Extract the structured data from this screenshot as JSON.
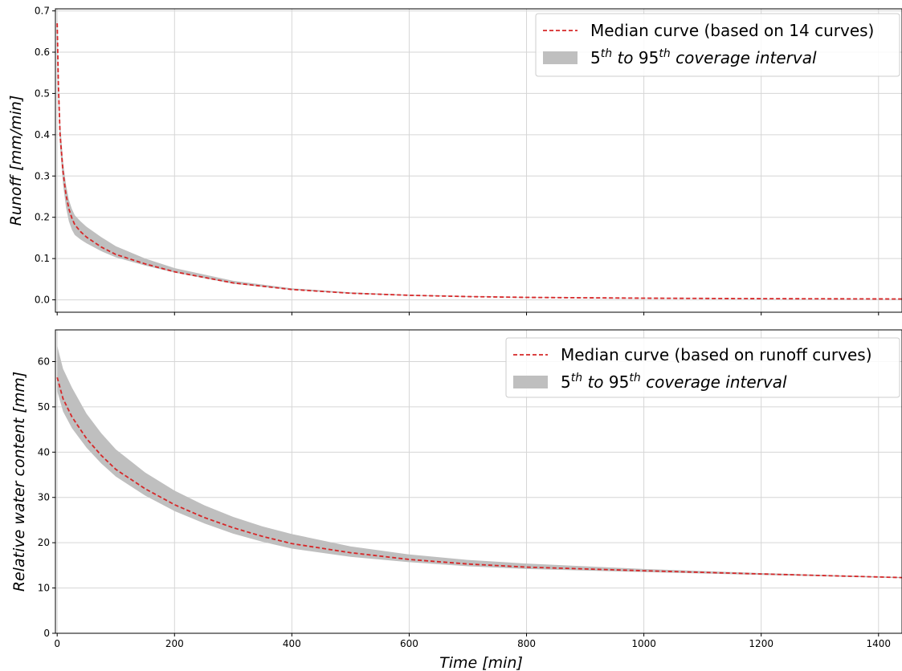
{
  "chart_data": [
    {
      "type": "line",
      "panel": "top",
      "ylabel": "Runoff [mm/min]",
      "xlim": [
        -3,
        1440
      ],
      "ylim": [
        -0.03,
        0.705
      ],
      "yticks": [
        0.0,
        0.1,
        0.2,
        0.3,
        0.4,
        0.5,
        0.6,
        0.7
      ],
      "ytick_labels": [
        "0.0",
        "0.1",
        "0.2",
        "0.3",
        "0.4",
        "0.5",
        "0.6",
        "0.7"
      ],
      "xticks": [
        0,
        200,
        400,
        600,
        800,
        1000,
        1200,
        1400
      ],
      "xtick_labels_shown": false,
      "grid": true,
      "legend_position": "top-right",
      "x": [
        0,
        2,
        5,
        10,
        15,
        20,
        25,
        30,
        40,
        50,
        75,
        100,
        150,
        200,
        300,
        400,
        500,
        600,
        700,
        800,
        1000,
        1200,
        1440
      ],
      "series": [
        {
          "name": "Median curve (based on 14 curves)",
          "style": "dashed",
          "color": "#d62728",
          "values": [
            0.67,
            0.52,
            0.4,
            0.31,
            0.255,
            0.22,
            0.198,
            0.182,
            0.165,
            0.152,
            0.128,
            0.11,
            0.087,
            0.068,
            0.041,
            0.025,
            0.016,
            0.011,
            0.008,
            0.006,
            0.004,
            0.0028,
            0.002
          ]
        },
        {
          "name": "5th to 95th coverage interval",
          "type": "band",
          "color": "#bfbfbf",
          "lower": [
            0.64,
            0.49,
            0.37,
            0.28,
            0.225,
            0.19,
            0.17,
            0.157,
            0.146,
            0.137,
            0.118,
            0.103,
            0.083,
            0.066,
            0.039,
            0.024,
            0.015,
            0.01,
            0.0075,
            0.0055,
            0.0035,
            0.0025,
            0.0018
          ],
          "upper": [
            0.69,
            0.55,
            0.43,
            0.335,
            0.28,
            0.242,
            0.22,
            0.205,
            0.19,
            0.177,
            0.152,
            0.13,
            0.1,
            0.077,
            0.046,
            0.028,
            0.018,
            0.012,
            0.0088,
            0.0066,
            0.0045,
            0.0032,
            0.0023
          ]
        }
      ],
      "legend": {
        "line_label": "Median curve (based on 14 curves)",
        "band_label": {
          "p1": "5",
          "sup1": "th",
          "mid": " to 95",
          "sup2": "th",
          "tail": " coverage interval"
        }
      }
    },
    {
      "type": "line",
      "panel": "bottom",
      "ylabel": "Relative water content [mm]",
      "xlabel": "Time [min]",
      "xlim": [
        -3,
        1440
      ],
      "ylim": [
        0,
        67
      ],
      "yticks": [
        0,
        10,
        20,
        30,
        40,
        50,
        60
      ],
      "ytick_labels": [
        "0",
        "10",
        "20",
        "30",
        "40",
        "50",
        "60"
      ],
      "xticks": [
        0,
        200,
        400,
        600,
        800,
        1000,
        1200,
        1400
      ],
      "xtick_labels": [
        "0",
        "200",
        "400",
        "600",
        "800",
        "1000",
        "1200",
        "1400"
      ],
      "grid": true,
      "legend_position": "top-right",
      "x": [
        0,
        10,
        25,
        50,
        75,
        100,
        150,
        200,
        250,
        300,
        350,
        400,
        500,
        600,
        700,
        800,
        1000,
        1200,
        1440
      ],
      "series": [
        {
          "name": "Median curve (based on runoff curves)",
          "style": "dashed",
          "color": "#d62728",
          "values": [
            56.5,
            51.8,
            47.8,
            43.0,
            39.3,
            36.2,
            31.9,
            28.4,
            25.6,
            23.3,
            21.4,
            19.8,
            17.8,
            16.3,
            15.3,
            14.6,
            13.8,
            13.1,
            12.3
          ]
        },
        {
          "name": "5th to 95th coverage interval",
          "type": "band",
          "color": "#bfbfbf",
          "lower": [
            53.5,
            49.0,
            45.3,
            41.0,
            37.5,
            34.6,
            30.4,
            27.0,
            24.3,
            22.0,
            20.2,
            18.7,
            16.9,
            15.7,
            14.8,
            14.2,
            13.5,
            12.9,
            12.2
          ],
          "upper": [
            63.5,
            58.4,
            54.3,
            48.5,
            44.2,
            40.6,
            35.5,
            31.5,
            28.3,
            25.7,
            23.6,
            21.9,
            19.2,
            17.4,
            16.2,
            15.4,
            14.2,
            13.3,
            12.4
          ]
        }
      ],
      "legend": {
        "line_label": "Median curve (based on runoff curves)",
        "band_label": {
          "p1": "5",
          "sup1": "th",
          "mid": " to 95",
          "sup2": "th",
          "tail": " coverage interval"
        }
      }
    }
  ]
}
